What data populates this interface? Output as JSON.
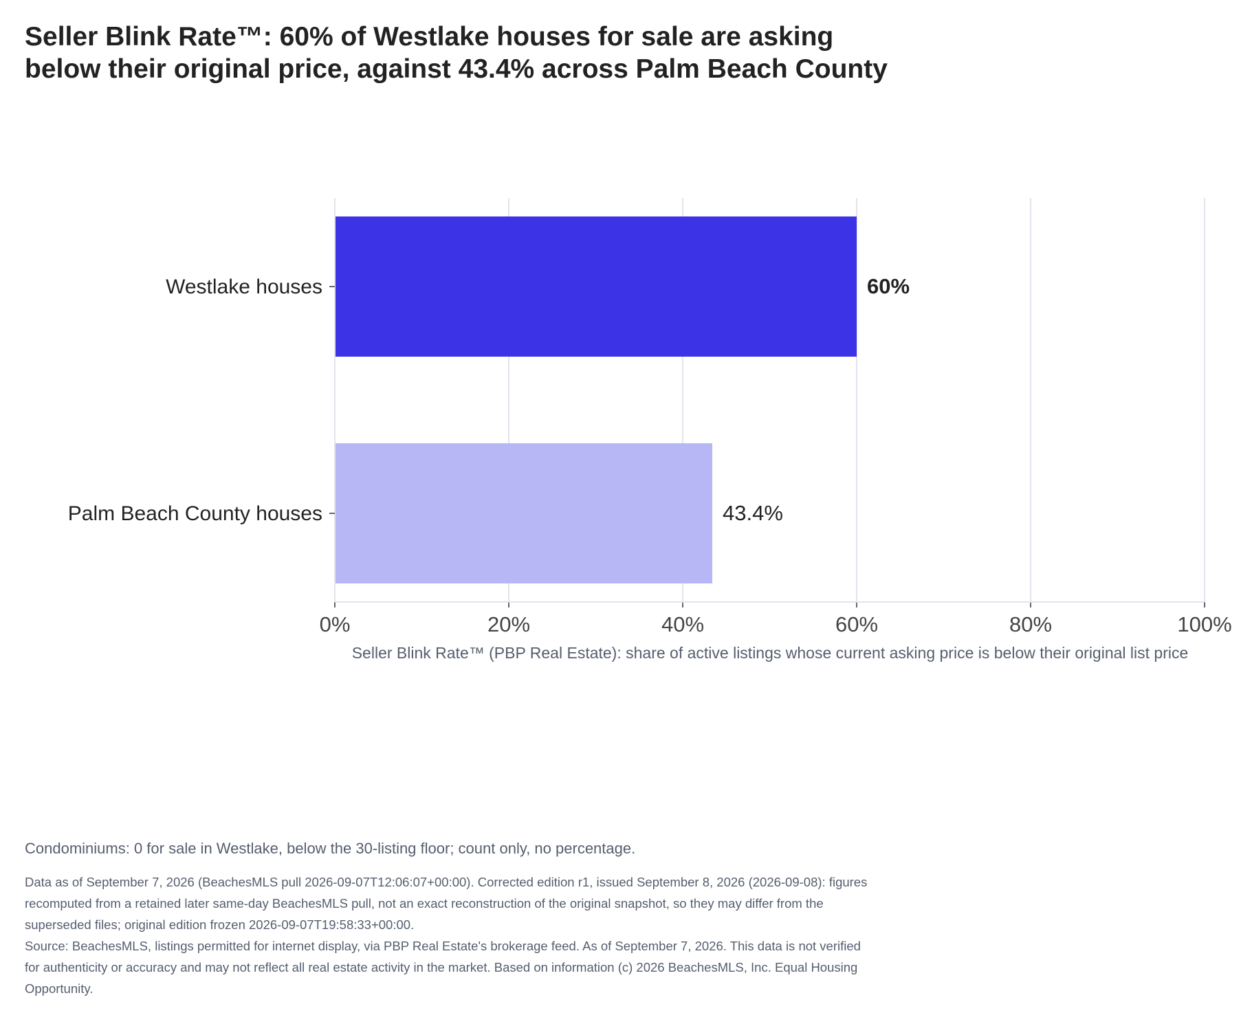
{
  "title": {
    "line1": "Seller Blink Rate™: 60% of Westlake houses for sale are asking",
    "line2": "below their original price, against 43.4% across Palm Beach County"
  },
  "chart_data": {
    "type": "bar",
    "orientation": "horizontal",
    "categories": [
      "Westlake houses",
      "Palm Beach County houses"
    ],
    "values": [
      60,
      43.4
    ],
    "value_labels": [
      "60%",
      "43.4%"
    ],
    "bar_colors": [
      "#3c32e6",
      "#b8b7f6"
    ],
    "xlabel": "Seller Blink Rate™ (PBP Real Estate): share of active listings whose current asking price is below their original list price",
    "ylabel": "",
    "xlim": [
      0,
      100
    ],
    "xticks": [
      0,
      20,
      40,
      60,
      80,
      100
    ],
    "xtick_labels": [
      "0%",
      "20%",
      "40%",
      "60%",
      "80%",
      "100%"
    ],
    "grid": "vertical",
    "legend": "none"
  },
  "footer": {
    "condos_note": "Condominiums: 0 for sale in Westlake, below the 30-listing floor; count only, no percentage.",
    "data_note_lines": [
      "Data as of September 7, 2026 (BeachesMLS pull 2026-09-07T12:06:07+00:00). Corrected edition r1, issued September 8, 2026 (2026-09-08): figures",
      "recomputed from a retained later same-day BeachesMLS pull, not an exact reconstruction of the original snapshot, so they may differ from the",
      "superseded files; original edition frozen 2026-09-07T19:58:33+00:00."
    ],
    "source_lines": [
      "Source: BeachesMLS, listings permitted for internet display, via PBP Real Estate's brokerage feed. As of September 7, 2026. This data is not verified",
      "for authenticity or accuracy and may not reflect all real estate activity in the market. Based on information (c) 2026 BeachesMLS, Inc. Equal Housing",
      "Opportunity."
    ]
  }
}
